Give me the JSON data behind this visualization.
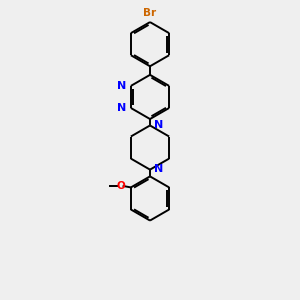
{
  "bg_color": "#efefef",
  "bond_color": "#000000",
  "nitrogen_color": "#0000ff",
  "bromine_color": "#cc6600",
  "oxygen_color": "#ff0000",
  "line_width": 1.4,
  "dbo": 0.055,
  "figsize": [
    3.0,
    3.0
  ],
  "dpi": 100,
  "xlim": [
    -2.5,
    2.5
  ],
  "ylim": [
    -4.8,
    4.8
  ]
}
